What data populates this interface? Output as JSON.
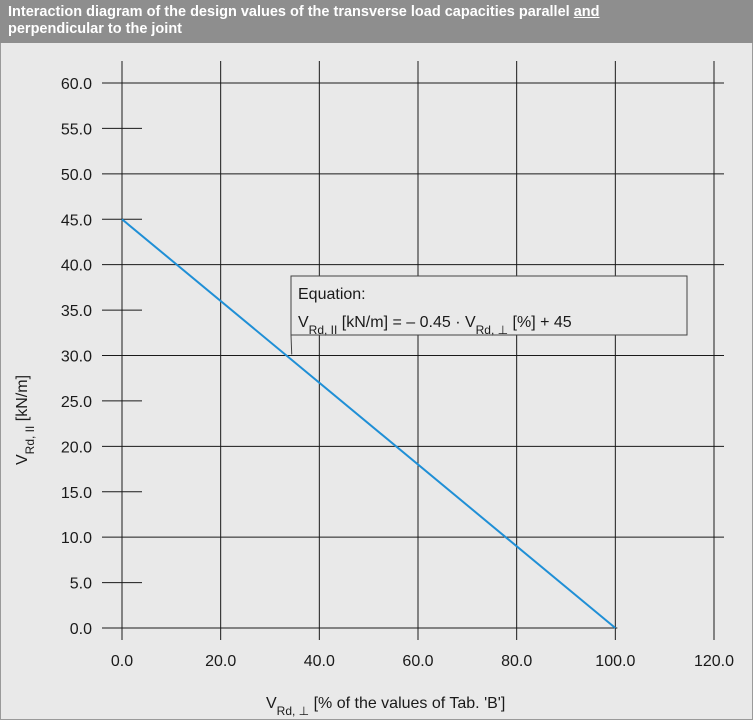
{
  "title": {
    "main": "Interaction diagram of the design values of the transverse load capacities parallel",
    "underlined": "and",
    "rest": "perpendicular to the joint"
  },
  "colors": {
    "title_bg": "#8e8e8e",
    "plot_bg": "#e9e9e9",
    "grid": "#1a1a1a",
    "line": "#1f8fd6"
  },
  "chart_data": {
    "type": "line",
    "xlabel_main": "V",
    "xlabel_sub": "Rd, ⊥",
    "xlabel_rest": " [% of the values of Tab. 'B']",
    "ylabel_main": "V",
    "ylabel_sub": "Rd, II",
    "ylabel_rest": " [kN/m]",
    "xlim": [
      0,
      120
    ],
    "ylim": [
      0,
      60
    ],
    "x_ticks": [
      0,
      20,
      40,
      60,
      80,
      100,
      120
    ],
    "x_tick_labels": [
      "0.0",
      "20.0",
      "40.0",
      "60.0",
      "80.0",
      "100.0",
      "120.0"
    ],
    "y_ticks": [
      0,
      5,
      10,
      15,
      20,
      25,
      30,
      35,
      40,
      45,
      50,
      55,
      60
    ],
    "y_tick_labels": [
      "0.0",
      "5.0",
      "10.0",
      "15.0",
      "20.0",
      "25.0",
      "30.0",
      "35.0",
      "40.0",
      "45.0",
      "50.0",
      "55.0",
      "60.0"
    ],
    "y_full_grid": [
      0,
      10,
      20,
      30,
      40,
      50,
      60
    ],
    "grid": true,
    "series": [
      {
        "x": [
          0,
          100
        ],
        "y": [
          45,
          0
        ]
      }
    ],
    "annotation": {
      "line1": "Equation:",
      "eq_V1": "V",
      "eq_sub1": "Rd, II",
      "eq_mid": " [kN/m] = – 0.45 · V",
      "eq_sub2": "Rd, ⊥",
      "eq_end": " [%] + 45",
      "anchor_x": 34,
      "anchor_y": 30
    }
  }
}
